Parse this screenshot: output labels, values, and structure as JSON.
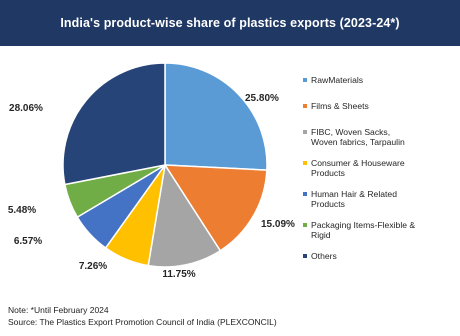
{
  "chart_data": {
    "type": "pie",
    "title": "India's product-wise share of plastics exports (2023-24*)",
    "unit": "%",
    "slices": [
      {
        "label_lines": [
          "RawMaterials"
        ],
        "value": 25.8,
        "value_label": "25.80%",
        "color": "#5b9bd5"
      },
      {
        "label_lines": [
          "Films & Sheets"
        ],
        "value": 15.09,
        "value_label": "15.09%",
        "color": "#ed7d31"
      },
      {
        "label_lines": [
          "FIBC, Woven Sacks,",
          "Woven fabrics, Tarpaulin"
        ],
        "value": 11.75,
        "value_label": "11.75%",
        "color": "#a5a5a5"
      },
      {
        "label_lines": [
          "Consumer & Houseware",
          "Products"
        ],
        "value": 7.26,
        "value_label": "7.26%",
        "color": "#ffc000"
      },
      {
        "label_lines": [
          "Human Hair & Related",
          "Products"
        ],
        "value": 6.57,
        "value_label": "6.57%",
        "color": "#4472c4"
      },
      {
        "label_lines": [
          "Packaging Items-Flexible &",
          "Rigid"
        ],
        "value": 5.48,
        "value_label": "5.48%",
        "color": "#70ad47"
      },
      {
        "label_lines": [
          "Others"
        ],
        "value": 28.06,
        "value_label": "28.06%",
        "color": "#264478"
      }
    ],
    "legend_position": "right"
  },
  "notes": {
    "note": "Note: *Until February 2024",
    "source": "Source: The Plastics Export Promotion Council of India (PLEXCONCIL)"
  }
}
